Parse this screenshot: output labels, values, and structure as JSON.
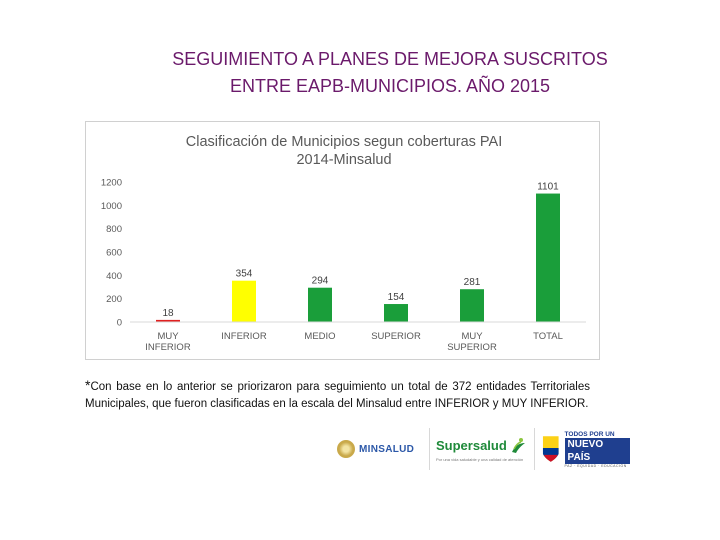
{
  "slide": {
    "title_line1": "SEGUIMIENTO A PLANES DE MEJORA SUSCRITOS",
    "title_line2": "ENTRE EAPB-MUNICIPIOS. AÑO 2015"
  },
  "chart_data": {
    "type": "bar",
    "title_line1": "Clasificación de Municipios segun coberturas PAI",
    "title_line2": "2014-Minsalud",
    "categories": [
      [
        "MUY",
        "INFERIOR"
      ],
      [
        "INFERIOR"
      ],
      [
        "MEDIO"
      ],
      [
        "SUPERIOR"
      ],
      [
        "MUY",
        "SUPERIOR"
      ],
      [
        "TOTAL"
      ]
    ],
    "values": [
      18,
      354,
      294,
      154,
      281,
      1101
    ],
    "bar_colors": [
      "#e02020",
      "#ffff00",
      "#1a9e3a",
      "#1a9e3a",
      "#1a9e3a",
      "#1a9e3a"
    ],
    "yticks": [
      "0",
      "200",
      "400",
      "600",
      "800",
      "1000",
      "1200"
    ],
    "ylim": [
      0,
      1200
    ],
    "xlabel": "",
    "ylabel": "",
    "grid": false,
    "legend": "none"
  },
  "note": {
    "star": "*",
    "text": "Con base en lo anterior se priorizaron para seguimiento un total de 372 entidades Territoriales Municipales, que fueron clasificadas en la escala del Minsalud entre INFERIOR y MUY INFERIOR."
  },
  "logos": {
    "minsalud": "MINSALUD",
    "supersalud": "Supersalud",
    "supersalud_tagline": "Por una vida saludable y una calidad de atención",
    "pais_top": "TODOS POR UN",
    "pais_main": "NUEVO PAÍS",
    "pais_sub": "PAZ · EQUIDAD · EDUCACIÓN"
  }
}
